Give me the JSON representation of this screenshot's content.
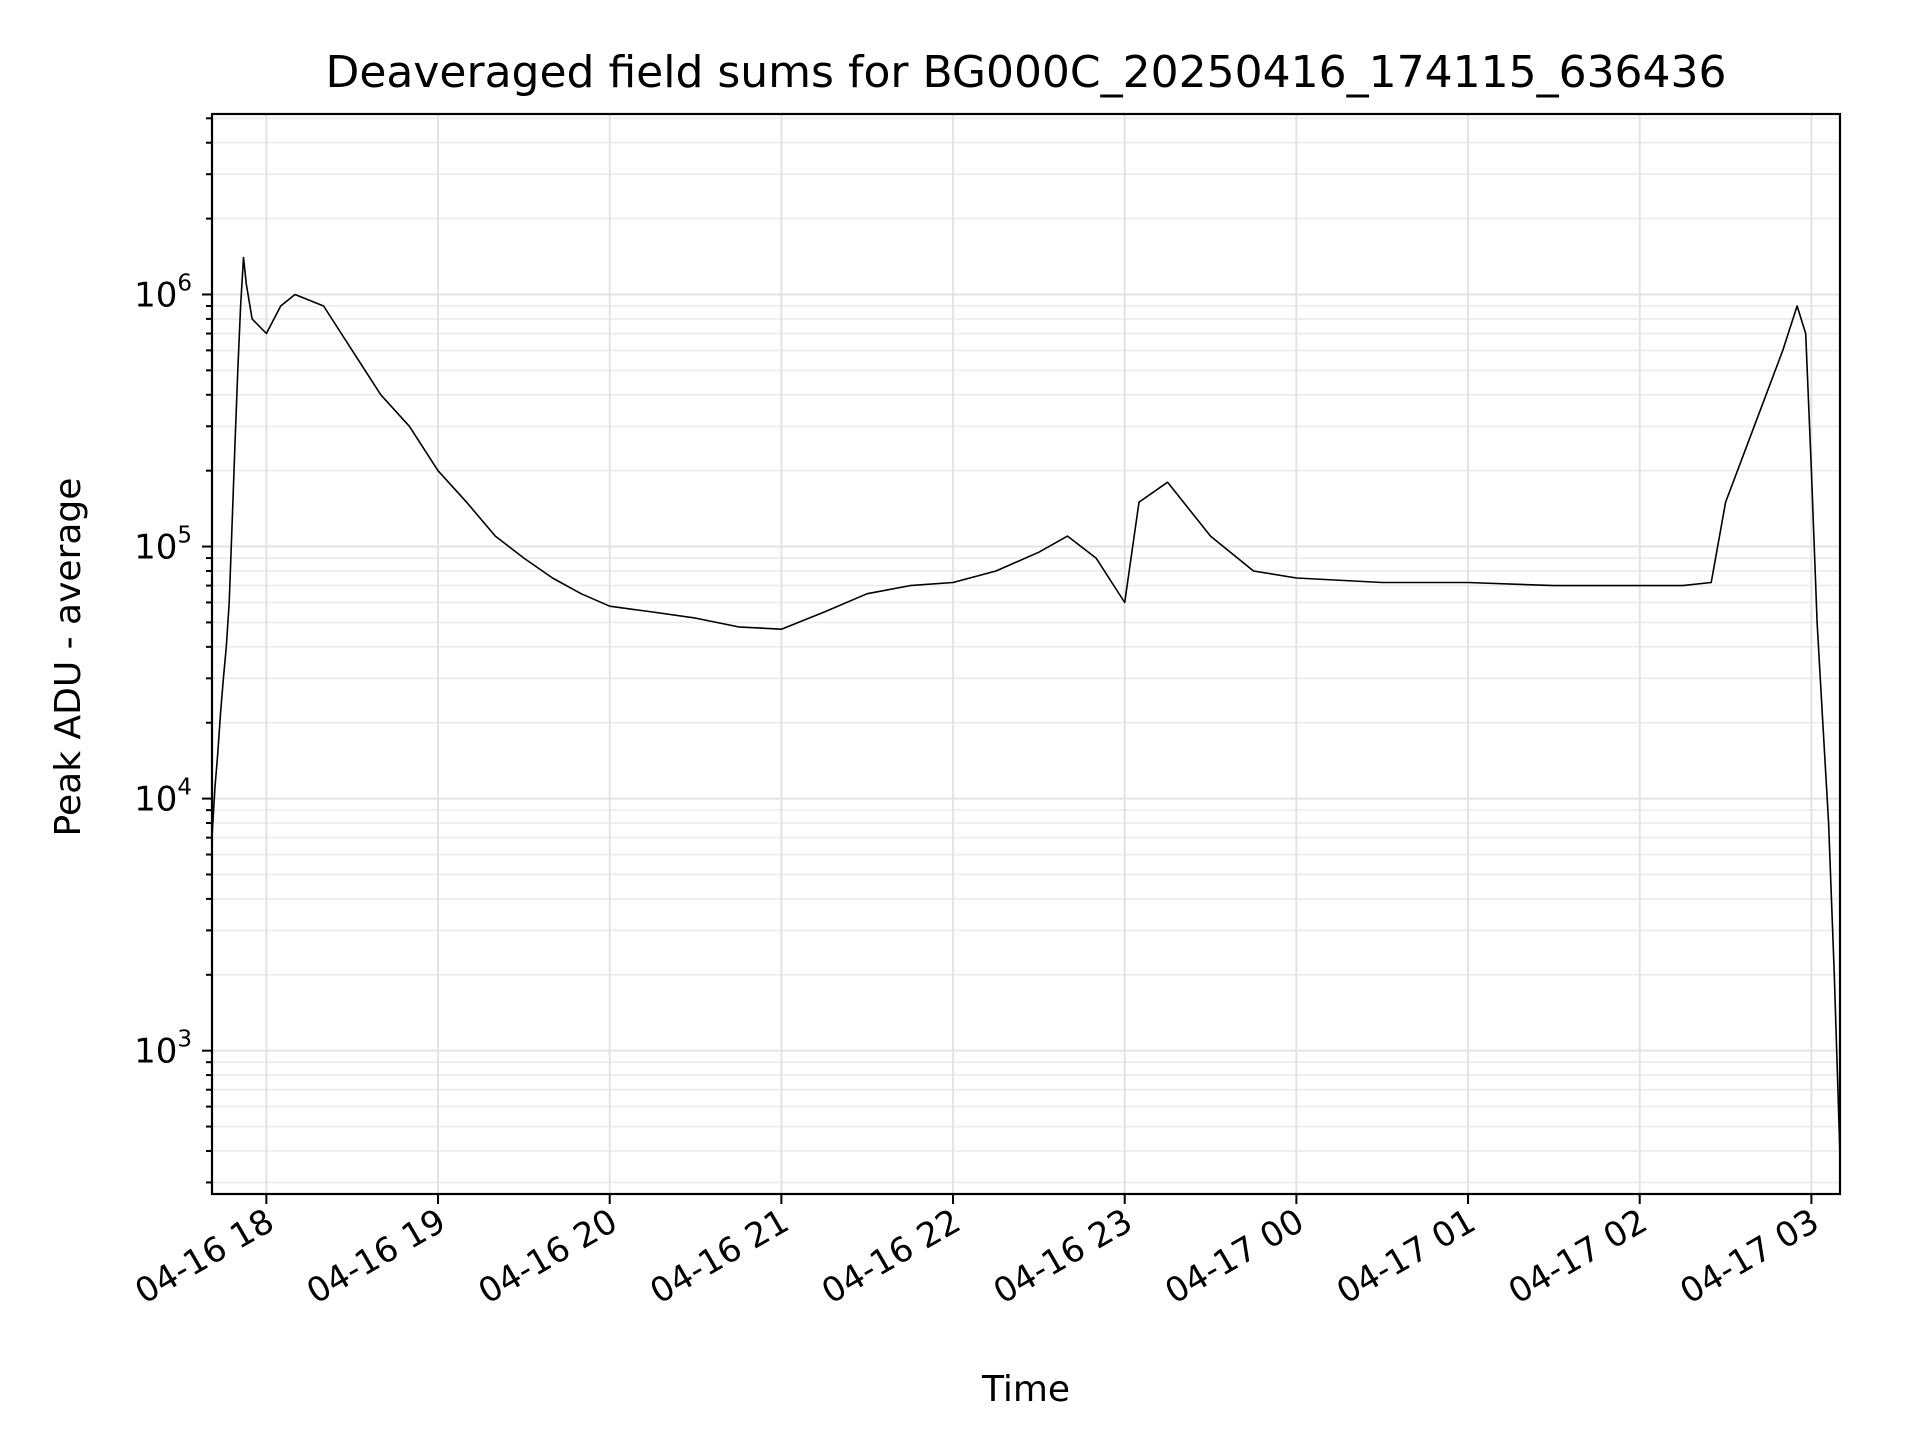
{
  "chart_data": {
    "type": "line",
    "title": "Deaveraged field sums for BG000C_20250416_174115_636436",
    "xlabel": "Time",
    "ylabel": "Peak ADU - average",
    "yscale": "log",
    "grid": true,
    "grid_minor": true,
    "line_color": "#000000",
    "xlim": [
      "2025-04-16 17:41",
      "2025-04-17 03:10"
    ],
    "ylim": [
      270,
      5200000
    ],
    "x_ticks": [
      {
        "label": "04-16 18",
        "value": "2025-04-16 18:00"
      },
      {
        "label": "04-16 19",
        "value": "2025-04-16 19:00"
      },
      {
        "label": "04-16 20",
        "value": "2025-04-16 20:00"
      },
      {
        "label": "04-16 21",
        "value": "2025-04-16 21:00"
      },
      {
        "label": "04-16 22",
        "value": "2025-04-16 22:00"
      },
      {
        "label": "04-16 23",
        "value": "2025-04-16 23:00"
      },
      {
        "label": "04-17 00",
        "value": "2025-04-17 00:00"
      },
      {
        "label": "04-17 01",
        "value": "2025-04-17 01:00"
      },
      {
        "label": "04-17 02",
        "value": "2025-04-17 02:00"
      },
      {
        "label": "04-17 03",
        "value": "2025-04-17 03:00"
      }
    ],
    "y_ticks": [
      {
        "base": "10",
        "exp": "3",
        "value": 1000
      },
      {
        "base": "10",
        "exp": "4",
        "value": 10000
      },
      {
        "base": "10",
        "exp": "5",
        "value": 100000
      },
      {
        "base": "10",
        "exp": "6",
        "value": 1000000
      }
    ],
    "series": [
      {
        "points": [
          [
            "2025-04-16 17:41",
            7000
          ],
          [
            "2025-04-16 17:42",
            11000
          ],
          [
            "2025-04-16 17:43",
            15000
          ],
          [
            "2025-04-16 17:44",
            22000
          ],
          [
            "2025-04-16 17:45",
            30000
          ],
          [
            "2025-04-16 17:46",
            40000
          ],
          [
            "2025-04-16 17:47",
            60000
          ],
          [
            "2025-04-16 17:48",
            120000
          ],
          [
            "2025-04-16 17:49",
            250000
          ],
          [
            "2025-04-16 17:50",
            500000
          ],
          [
            "2025-04-16 17:51",
            900000
          ],
          [
            "2025-04-16 17:52",
            1400000
          ],
          [
            "2025-04-16 17:53",
            1100000
          ],
          [
            "2025-04-16 17:55",
            800000
          ],
          [
            "2025-04-16 18:00",
            700000
          ],
          [
            "2025-04-16 18:05",
            900000
          ],
          [
            "2025-04-16 18:10",
            1000000
          ],
          [
            "2025-04-16 18:20",
            900000
          ],
          [
            "2025-04-16 18:30",
            600000
          ],
          [
            "2025-04-16 18:40",
            400000
          ],
          [
            "2025-04-16 18:50",
            300000
          ],
          [
            "2025-04-16 19:00",
            200000
          ],
          [
            "2025-04-16 19:10",
            150000
          ],
          [
            "2025-04-16 19:20",
            110000
          ],
          [
            "2025-04-16 19:30",
            90000
          ],
          [
            "2025-04-16 19:40",
            75000
          ],
          [
            "2025-04-16 19:50",
            65000
          ],
          [
            "2025-04-16 20:00",
            58000
          ],
          [
            "2025-04-16 20:15",
            55000
          ],
          [
            "2025-04-16 20:30",
            52000
          ],
          [
            "2025-04-16 20:45",
            48000
          ],
          [
            "2025-04-16 21:00",
            47000
          ],
          [
            "2025-04-16 21:15",
            55000
          ],
          [
            "2025-04-16 21:30",
            65000
          ],
          [
            "2025-04-16 21:45",
            70000
          ],
          [
            "2025-04-16 22:00",
            72000
          ],
          [
            "2025-04-16 22:15",
            80000
          ],
          [
            "2025-04-16 22:30",
            95000
          ],
          [
            "2025-04-16 22:40",
            110000
          ],
          [
            "2025-04-16 22:50",
            90000
          ],
          [
            "2025-04-16 23:00",
            60000
          ],
          [
            "2025-04-16 23:05",
            150000
          ],
          [
            "2025-04-16 23:15",
            180000
          ],
          [
            "2025-04-16 23:30",
            110000
          ],
          [
            "2025-04-16 23:45",
            80000
          ],
          [
            "2025-04-17 00:00",
            75000
          ],
          [
            "2025-04-17 00:30",
            72000
          ],
          [
            "2025-04-17 01:00",
            72000
          ],
          [
            "2025-04-17 01:30",
            70000
          ],
          [
            "2025-04-17 02:00",
            70000
          ],
          [
            "2025-04-17 02:15",
            70000
          ],
          [
            "2025-04-17 02:25",
            72000
          ],
          [
            "2025-04-17 02:30",
            150000
          ],
          [
            "2025-04-17 02:40",
            300000
          ],
          [
            "2025-04-17 02:50",
            600000
          ],
          [
            "2025-04-17 02:55",
            900000
          ],
          [
            "2025-04-17 02:58",
            700000
          ],
          [
            "2025-04-17 03:00",
            200000
          ],
          [
            "2025-04-17 03:02",
            50000
          ],
          [
            "2025-04-17 03:04",
            20000
          ],
          [
            "2025-04-17 03:06",
            8000
          ],
          [
            "2025-04-17 03:08",
            2000
          ],
          [
            "2025-04-17 03:10",
            380
          ]
        ]
      }
    ]
  }
}
